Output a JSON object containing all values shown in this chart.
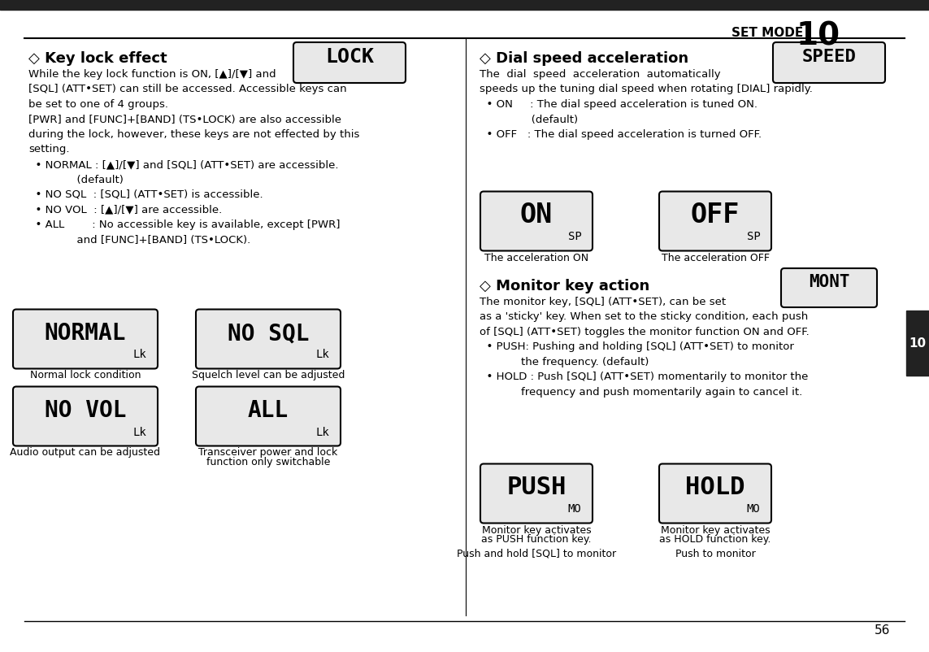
{
  "background_color": "#ffffff",
  "page_bg": "#ffffff",
  "top_bar_color": "#222222",
  "header_text": "SET MODE",
  "header_number": "10",
  "page_number": "56",
  "right_tab_color": "#222222",
  "right_tab_text": "10",
  "section1_title": "◇ Key lock effect",
  "section1_body": [
    "While the key lock function is ON, [▲]/[▼] and",
    "[SQL] (ATT•SET) can still be accessed. Accessible keys can",
    "be set to one of 4 groups.",
    "[PWR] and [FUNC]+[BAND] (TS•LOCK) are also accessible",
    "during the lock, however, these keys are not effected by this",
    "setting.",
    "  • NORMAL : [▲]/[▼] and [SQL] (ATT•SET) are accessible.",
    "              (default)",
    "  • NO SQL  : [SQL] (ATT•SET) is accessible.",
    "  • NO VOL  : [▲]/[▼] are accessible.",
    "  • ALL        : No accessible key is available, except [PWR]",
    "              and [FUNC]+[BAND] (TS•LOCK)."
  ],
  "lock_display_text": "LOCK",
  "lcd_boxes_left": [
    {
      "text": "NORMAL",
      "sub": "Lk",
      "caption": "Normal lock condition"
    },
    {
      "text": "NO VOL",
      "sub": "Lk",
      "caption": "Audio output can be adjusted"
    }
  ],
  "lcd_boxes_right_left": [
    {
      "text": "NO SQL",
      "sub": "Lk",
      "caption": "Squelch level can be adjusted"
    },
    {
      "text": "ALL",
      "sub": "Lk",
      "caption": "Transceiver power and lock\nfunction only switchable"
    }
  ],
  "section2_title": "◇ Dial speed acceleration",
  "section2_body": [
    "The  dial  speed  acceleration  automatically",
    "speeds up the tuning dial speed when rotating [DIAL] rapidly.",
    "  • ON     : The dial speed acceleration is tuned ON.",
    "               (default)",
    "  • OFF   : The dial speed acceleration is turned OFF."
  ],
  "speed_display_text": "SPEED",
  "lcd_boxes_speed": [
    {
      "text": "ON",
      "sub": "SP",
      "caption": "The acceleration ON"
    },
    {
      "text": "OFF",
      "sub": "SP",
      "caption": "The acceleration OFF"
    }
  ],
  "section3_title": "◇ Monitor key action",
  "section3_body": [
    "The monitor key, [SQL] (ATT•SET), can be set",
    "as a ‘sticky’ key. When set to the sticky condition, each push",
    "of [SQL] (ATT•SET) toggles the monitor function ON and OFF.",
    "  • PUSH: Pushing and holding [SQL] (ATT•SET) to monitor",
    "            the frequency. (default)",
    "  • HOLD : Push [SQL] (ATT•SET) momentarily to monitor the",
    "            frequency and push momentarily again to cancel it."
  ],
  "mont_display_text": "MONT",
  "lcd_boxes_monitor": [
    {
      "text": "PUSH",
      "sub": "MO",
      "caption": "Monitor key activates\nas PUSH function key.",
      "caption2": "Push and hold [SQL] to monitor"
    },
    {
      "text": "HOLD",
      "sub": "MO",
      "caption": "Monitor key activates\nas HOLD function key.",
      "caption2": "Push to monitor"
    }
  ]
}
